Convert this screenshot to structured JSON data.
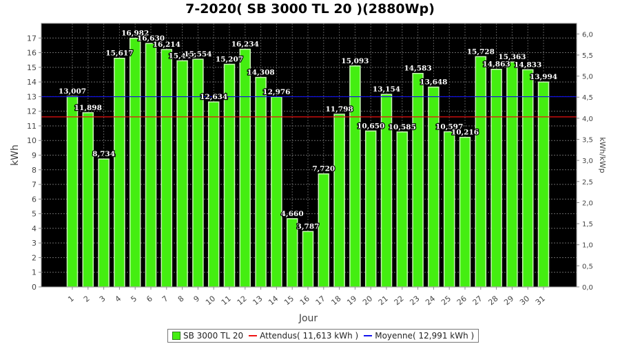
{
  "colors": {
    "bar": "#44ee11",
    "bar_border": "#33aa11",
    "plot_bg": "#000000",
    "expected_line": "#ee1111",
    "average_line": "#1111ee"
  },
  "chart_data": {
    "type": "bar",
    "title": "7-2020( SB 3000 TL 20 )(2880Wp)",
    "xlabel": "Jour",
    "ylabel": "kWh",
    "ylabel_right": "kWh/kWp",
    "ylim": [
      0,
      18
    ],
    "yticks": [
      "0",
      "1",
      "2",
      "3",
      "4",
      "5",
      "6",
      "7",
      "8",
      "9",
      "10",
      "11",
      "12",
      "13",
      "14",
      "15",
      "16",
      "17"
    ],
    "y2lim": [
      0,
      6.25
    ],
    "y2ticks": [
      "0,0",
      "0,5",
      "1,0",
      "1,5",
      "2,0",
      "2,5",
      "3,0",
      "3,5",
      "4,0",
      "4,5",
      "5,0",
      "5,5",
      "6,0"
    ],
    "grid": true,
    "categories": [
      "1",
      "2",
      "3",
      "4",
      "5",
      "6",
      "7",
      "8",
      "9",
      "10",
      "11",
      "12",
      "13",
      "14",
      "15",
      "16",
      "17",
      "18",
      "19",
      "20",
      "21",
      "22",
      "23",
      "24",
      "25",
      "26",
      "27",
      "28",
      "29",
      "30",
      "31"
    ],
    "series": [
      {
        "name": "SB 3000 TL 20",
        "values": [
          13.007,
          11.898,
          8.734,
          15.617,
          16.982,
          16.63,
          16.214,
          15.447,
          15.554,
          12.634,
          15.207,
          16.234,
          14.308,
          12.976,
          4.66,
          3.787,
          7.72,
          11.798,
          15.093,
          10.65,
          13.154,
          10.585,
          14.583,
          13.648,
          10.597,
          10.216,
          15.728,
          14.863,
          15.363,
          14.833,
          13.994
        ],
        "labels": [
          "13,007",
          "11,898",
          "8,734",
          "15,617",
          "16,982",
          "16,630",
          "16,214",
          "15,447",
          "15,554",
          "12,634",
          "15,207",
          "16,234",
          "14,308",
          "12,976",
          "4,660",
          "3,787",
          "7,720",
          "11,798",
          "15,093",
          "10,650",
          "13,154",
          "10,585",
          "14,583",
          "13,648",
          "10,597",
          "10,216",
          "15,728",
          "14,863",
          "15,363",
          "14,833",
          "13,994"
        ]
      }
    ],
    "reference_lines": [
      {
        "name": "Attendus( 11,613 kWh )",
        "value": 11.613,
        "color": "#ee1111"
      },
      {
        "name": "Moyenne( 12,991 kWh )",
        "value": 12.991,
        "color": "#1111ee"
      }
    ],
    "legend": {
      "position": "bottom",
      "entries": [
        "SB 3000 TL 20",
        "Attendus( 11,613 kWh )",
        "Moyenne( 12,991 kWh )"
      ]
    }
  }
}
